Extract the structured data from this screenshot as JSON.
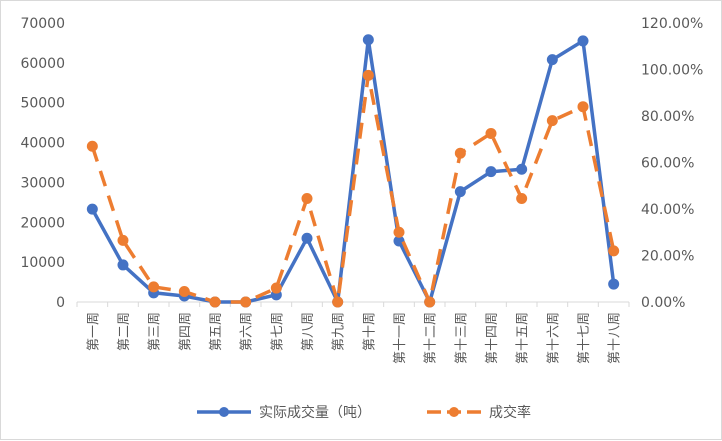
{
  "chart_data": {
    "type": "line",
    "categories": [
      "第一周",
      "第二周",
      "第三周",
      "第四周",
      "第五周",
      "第六周",
      "第七周",
      "第八周",
      "第九周",
      "第十周",
      "第十一周",
      "第十二周",
      "第十三周",
      "第十四周",
      "第十五周",
      "第十六周",
      "第十七周",
      "第十八周"
    ],
    "series": [
      {
        "name": "实际成交量（吨）",
        "axis": "left",
        "color": "#4472c4",
        "style": "solid",
        "values": [
          23300,
          9300,
          2300,
          1500,
          0,
          0,
          1800,
          16000,
          0,
          65800,
          15300,
          0,
          27700,
          32700,
          33300,
          60800,
          65500,
          4500
        ]
      },
      {
        "name": "成交率",
        "axis": "right",
        "color": "#ed7d31",
        "style": "dashed",
        "values": [
          0.67,
          0.265,
          0.065,
          0.045,
          0.0,
          0.0,
          0.06,
          0.445,
          0.0,
          0.975,
          0.3,
          0.0,
          0.64,
          0.725,
          0.445,
          0.78,
          0.84,
          0.22
        ]
      }
    ],
    "y_left": {
      "ylim": [
        0,
        70000
      ],
      "ticks": [
        0,
        10000,
        20000,
        30000,
        40000,
        50000,
        60000,
        70000
      ],
      "tick_labels": [
        "0",
        "10000",
        "20000",
        "30000",
        "40000",
        "50000",
        "60000",
        "70000"
      ]
    },
    "y_right": {
      "ylim": [
        0,
        1.2
      ],
      "ticks": [
        0,
        0.2,
        0.4,
        0.6,
        0.8,
        1.0,
        1.2
      ],
      "tick_labels": [
        "0.00%",
        "20.00%",
        "40.00%",
        "60.00%",
        "80.00%",
        "100.00%",
        "120.00%"
      ]
    },
    "title": "",
    "xlabel": "",
    "ylabel": "",
    "grid": false,
    "legend_position": "bottom"
  }
}
